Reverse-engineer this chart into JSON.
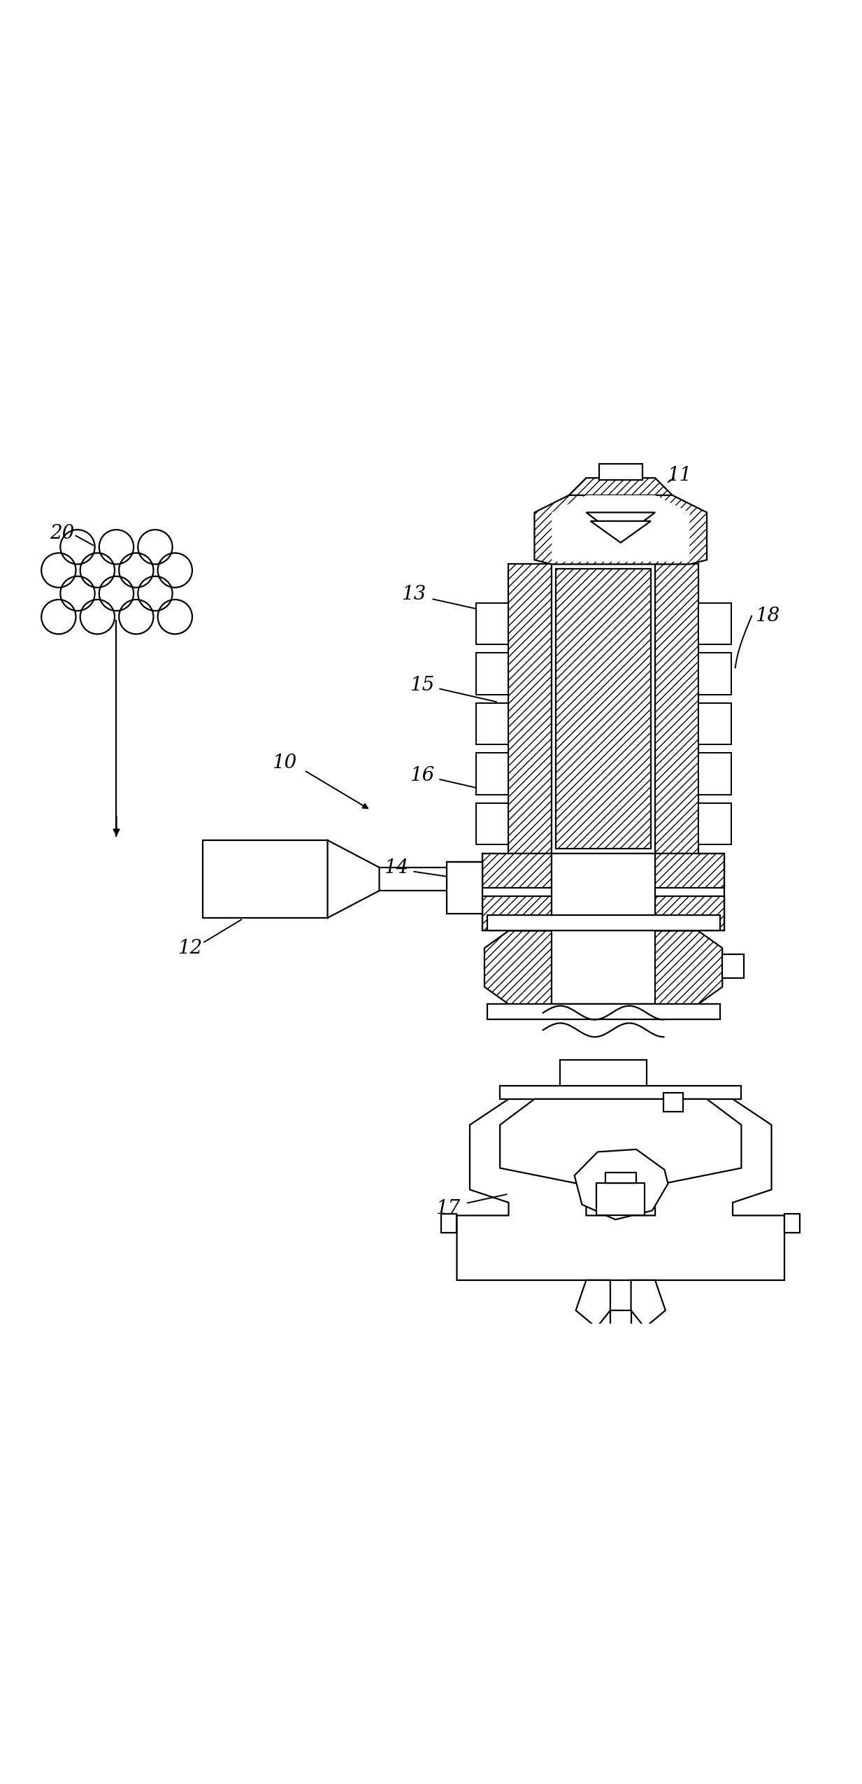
{
  "bg_color": "#ffffff",
  "line_color": "#000000",
  "figsize": [
    12.33,
    25.5
  ],
  "dpi": 100
}
